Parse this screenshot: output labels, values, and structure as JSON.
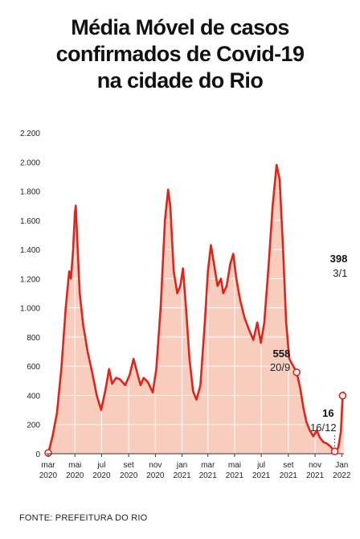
{
  "title_lines": [
    "Média Móvel de casos",
    "confirmados de Covid-19",
    "na cidade do Rio"
  ],
  "source": "FONTE: PREFEITURA DO RIO",
  "colors": {
    "line": "#e2231a",
    "fill": "#f9cdbd",
    "grid": "#ffffff",
    "text": "#222222"
  },
  "chart_data": {
    "type": "area",
    "title": "Média Móvel de casos confirmados de Covid-19 na cidade do Rio",
    "ylim": [
      0,
      2200
    ],
    "yticks": [
      0,
      200,
      400,
      600,
      800,
      1000,
      1200,
      1400,
      1600,
      1800,
      2000,
      2200
    ],
    "ytick_labels": [
      "0",
      "200",
      "400",
      "600",
      "800",
      "1.000",
      "1.200",
      "1.400",
      "1.600",
      "1.800",
      "2.000",
      "2.200"
    ],
    "xticks": [
      {
        "date": "2020-03-01",
        "label": [
          "mar",
          "2020"
        ]
      },
      {
        "date": "2020-05-01",
        "label": [
          "mai",
          "2020"
        ]
      },
      {
        "date": "2020-07-01",
        "label": [
          "jul",
          "2020"
        ]
      },
      {
        "date": "2020-09-01",
        "label": [
          "set",
          "2020"
        ]
      },
      {
        "date": "2020-11-01",
        "label": [
          "nov",
          "2020"
        ]
      },
      {
        "date": "2021-01-01",
        "label": [
          "jan",
          "2021"
        ]
      },
      {
        "date": "2021-03-01",
        "label": [
          "mar",
          "2021"
        ]
      },
      {
        "date": "2021-05-01",
        "label": [
          "mai",
          "2021"
        ]
      },
      {
        "date": "2021-07-01",
        "label": [
          "jul",
          "2021"
        ]
      },
      {
        "date": "2021-09-01",
        "label": [
          "set",
          "2021"
        ]
      },
      {
        "date": "2021-11-01",
        "label": [
          "nov",
          "2021"
        ]
      },
      {
        "date": "2022-01-01",
        "label": [
          "Jan",
          "2022"
        ]
      }
    ],
    "grid": true,
    "series": [
      {
        "points": [
          [
            "2020-03-01",
            0
          ],
          [
            "2020-03-11",
            120
          ],
          [
            "2020-03-21",
            280
          ],
          [
            "2020-03-31",
            580
          ],
          [
            "2020-04-10",
            1000
          ],
          [
            "2020-04-18",
            1250
          ],
          [
            "2020-04-22",
            1200
          ],
          [
            "2020-04-27",
            1400
          ],
          [
            "2020-05-01",
            1650
          ],
          [
            "2020-05-03",
            1700
          ],
          [
            "2020-05-06",
            1500
          ],
          [
            "2020-05-12",
            1100
          ],
          [
            "2020-05-20",
            880
          ],
          [
            "2020-05-30",
            700
          ],
          [
            "2020-06-10",
            550
          ],
          [
            "2020-06-20",
            400
          ],
          [
            "2020-06-30",
            300
          ],
          [
            "2020-07-10",
            440
          ],
          [
            "2020-07-18",
            580
          ],
          [
            "2020-07-25",
            480
          ],
          [
            "2020-08-03",
            520
          ],
          [
            "2020-08-12",
            510
          ],
          [
            "2020-08-24",
            470
          ],
          [
            "2020-09-03",
            540
          ],
          [
            "2020-09-12",
            650
          ],
          [
            "2020-09-20",
            560
          ],
          [
            "2020-09-28",
            470
          ],
          [
            "2020-10-05",
            520
          ],
          [
            "2020-10-15",
            490
          ],
          [
            "2020-10-26",
            420
          ],
          [
            "2020-11-03",
            580
          ],
          [
            "2020-11-13",
            1000
          ],
          [
            "2020-11-23",
            1600
          ],
          [
            "2020-11-30",
            1810
          ],
          [
            "2020-12-05",
            1700
          ],
          [
            "2020-12-13",
            1250
          ],
          [
            "2020-12-21",
            1100
          ],
          [
            "2020-12-28",
            1150
          ],
          [
            "2021-01-03",
            1270
          ],
          [
            "2021-01-10",
            1000
          ],
          [
            "2021-01-18",
            650
          ],
          [
            "2021-01-26",
            430
          ],
          [
            "2021-02-03",
            370
          ],
          [
            "2021-02-12",
            470
          ],
          [
            "2021-02-22",
            900
          ],
          [
            "2021-03-01",
            1250
          ],
          [
            "2021-03-08",
            1430
          ],
          [
            "2021-03-15",
            1300
          ],
          [
            "2021-03-23",
            1150
          ],
          [
            "2021-03-31",
            1200
          ],
          [
            "2021-04-05",
            1100
          ],
          [
            "2021-04-13",
            1150
          ],
          [
            "2021-04-21",
            1300
          ],
          [
            "2021-04-28",
            1370
          ],
          [
            "2021-05-05",
            1200
          ],
          [
            "2021-05-14",
            1050
          ],
          [
            "2021-05-24",
            930
          ],
          [
            "2021-06-03",
            850
          ],
          [
            "2021-06-13",
            780
          ],
          [
            "2021-06-22",
            900
          ],
          [
            "2021-06-30",
            760
          ],
          [
            "2021-07-08",
            900
          ],
          [
            "2021-07-18",
            1300
          ],
          [
            "2021-07-27",
            1700
          ],
          [
            "2021-08-05",
            1980
          ],
          [
            "2021-08-12",
            1880
          ],
          [
            "2021-08-20",
            1400
          ],
          [
            "2021-08-27",
            900
          ],
          [
            "2021-09-03",
            650
          ],
          [
            "2021-09-20",
            558
          ],
          [
            "2021-09-28",
            450
          ],
          [
            "2021-10-05",
            320
          ],
          [
            "2021-10-12",
            220
          ],
          [
            "2021-10-20",
            160
          ],
          [
            "2021-10-28",
            120
          ],
          [
            "2021-11-05",
            160
          ],
          [
            "2021-11-12",
            110
          ],
          [
            "2021-11-20",
            80
          ],
          [
            "2021-11-28",
            70
          ],
          [
            "2021-12-06",
            50
          ],
          [
            "2021-12-16",
            16
          ],
          [
            "2021-12-24",
            40
          ],
          [
            "2021-12-30",
            150
          ],
          [
            "2022-01-03",
            398
          ],
          [
            "2022-01-05",
            420
          ]
        ]
      }
    ],
    "annotations": [
      {
        "date": "2021-09-20",
        "value": "558",
        "label": "20/9"
      },
      {
        "date": "2021-12-16",
        "value": "16",
        "label": "16/12"
      },
      {
        "date": "2022-01-03",
        "value": "398",
        "label": "3/1"
      }
    ]
  }
}
